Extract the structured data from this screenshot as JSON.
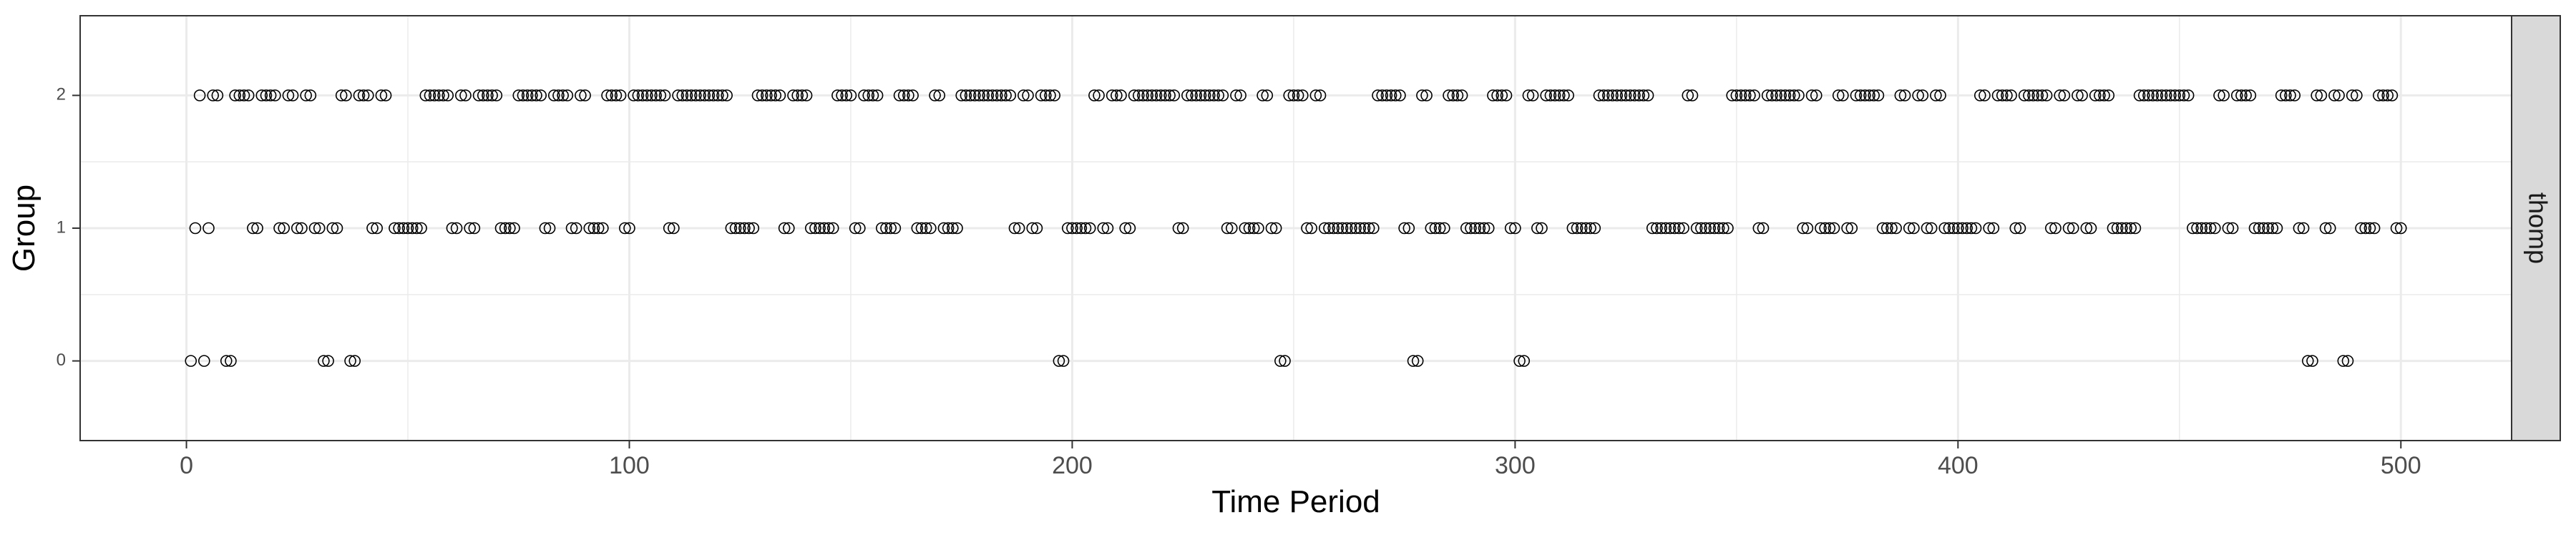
{
  "chart_data": {
    "type": "scatter",
    "title": "",
    "xlabel": "Time Period",
    "ylabel": "Group",
    "facet_label": "thomp",
    "xlim": [
      -24,
      525
    ],
    "ylim": [
      -0.6,
      2.6
    ],
    "xticks": [
      0,
      100,
      200,
      300,
      400,
      500
    ],
    "yticks": [
      0,
      1,
      2
    ],
    "minor_x_gridlines": [
      50,
      150,
      250,
      350,
      450
    ],
    "minor_y_gridlines": [
      0.5,
      1.5
    ],
    "grid": true,
    "marker": "open-circle",
    "colors": {
      "point_stroke": "#000000",
      "grid": "#ebebeb",
      "strip_fill": "#d9d9d9",
      "panel_border": "#333333"
    },
    "series": [
      {
        "y": 0,
        "x": [
          1,
          4,
          9,
          10,
          31,
          32,
          37,
          38,
          197,
          198,
          247,
          248,
          277,
          278,
          301,
          302,
          479,
          480,
          487,
          488
        ]
      },
      {
        "y": 1,
        "x": [
          2,
          5,
          15,
          16,
          21,
          22,
          25,
          26,
          29,
          30,
          33,
          34,
          42,
          43,
          47,
          48,
          49,
          50,
          51,
          52,
          53,
          60,
          61,
          64,
          65,
          71,
          72,
          73,
          74,
          81,
          82,
          87,
          88,
          91,
          92,
          93,
          94,
          99,
          100,
          109,
          110,
          123,
          124,
          125,
          126,
          127,
          128,
          135,
          136,
          141,
          142,
          143,
          144,
          145,
          146,
          151,
          152,
          157,
          158,
          159,
          160,
          165,
          166,
          167,
          168,
          171,
          172,
          173,
          174,
          187,
          188,
          191,
          192,
          199,
          200,
          201,
          202,
          203,
          204,
          207,
          208,
          212,
          213,
          224,
          225,
          235,
          236,
          239,
          240,
          241,
          242,
          245,
          246,
          253,
          254,
          257,
          258,
          259,
          260,
          261,
          262,
          263,
          264,
          265,
          266,
          267,
          268,
          275,
          276,
          281,
          282,
          283,
          284,
          289,
          290,
          291,
          292,
          293,
          294,
          299,
          300,
          305,
          306,
          313,
          314,
          315,
          316,
          317,
          318,
          331,
          332,
          333,
          334,
          335,
          336,
          337,
          338,
          341,
          342,
          343,
          344,
          345,
          346,
          347,
          348,
          355,
          356,
          365,
          366,
          369,
          370,
          371,
          372,
          375,
          376,
          383,
          384,
          385,
          386,
          389,
          390,
          393,
          394,
          397,
          398,
          399,
          400,
          401,
          402,
          403,
          404,
          407,
          408,
          413,
          414,
          421,
          422,
          425,
          426,
          429,
          430,
          435,
          436,
          437,
          438,
          439,
          440,
          453,
          454,
          455,
          456,
          457,
          458,
          461,
          462,
          467,
          468,
          469,
          470,
          471,
          472,
          477,
          478,
          483,
          484,
          491,
          492,
          493,
          494,
          499,
          500
        ]
      },
      {
        "y": 2,
        "x": [
          3,
          6,
          7,
          11,
          12,
          13,
          14,
          17,
          18,
          19,
          20,
          23,
          24,
          27,
          28,
          35,
          36,
          39,
          40,
          41,
          44,
          45,
          54,
          55,
          56,
          57,
          58,
          59,
          62,
          63,
          66,
          67,
          68,
          69,
          70,
          75,
          76,
          77,
          78,
          79,
          80,
          83,
          84,
          85,
          86,
          89,
          90,
          95,
          96,
          97,
          98,
          101,
          102,
          103,
          104,
          105,
          106,
          107,
          108,
          111,
          112,
          113,
          114,
          115,
          116,
          117,
          118,
          119,
          120,
          121,
          122,
          129,
          130,
          131,
          132,
          133,
          134,
          137,
          138,
          139,
          140,
          147,
          148,
          149,
          150,
          153,
          154,
          155,
          156,
          161,
          162,
          163,
          164,
          169,
          170,
          175,
          176,
          177,
          178,
          179,
          180,
          181,
          182,
          183,
          184,
          185,
          186,
          189,
          190,
          193,
          194,
          195,
          196,
          205,
          206,
          209,
          210,
          211,
          214,
          215,
          216,
          217,
          218,
          219,
          220,
          221,
          222,
          223,
          226,
          227,
          228,
          229,
          230,
          231,
          232,
          233,
          234,
          237,
          238,
          243,
          244,
          249,
          250,
          251,
          252,
          255,
          256,
          269,
          270,
          271,
          272,
          273,
          274,
          279,
          280,
          285,
          286,
          287,
          288,
          295,
          296,
          297,
          298,
          303,
          304,
          307,
          308,
          309,
          310,
          311,
          312,
          319,
          320,
          321,
          322,
          323,
          324,
          325,
          326,
          327,
          328,
          329,
          330,
          339,
          340,
          349,
          350,
          351,
          352,
          353,
          354,
          357,
          358,
          359,
          360,
          361,
          362,
          363,
          364,
          367,
          368,
          373,
          374,
          377,
          378,
          379,
          380,
          381,
          382,
          387,
          388,
          391,
          392,
          395,
          396,
          405,
          406,
          409,
          410,
          411,
          412,
          415,
          416,
          417,
          418,
          419,
          420,
          423,
          424,
          427,
          428,
          431,
          432,
          433,
          434,
          441,
          442,
          443,
          444,
          445,
          446,
          447,
          448,
          449,
          450,
          451,
          452,
          459,
          460,
          463,
          464,
          465,
          466,
          473,
          474,
          475,
          476,
          481,
          482,
          485,
          486,
          489,
          490,
          495,
          496,
          497,
          498
        ]
      }
    ]
  }
}
